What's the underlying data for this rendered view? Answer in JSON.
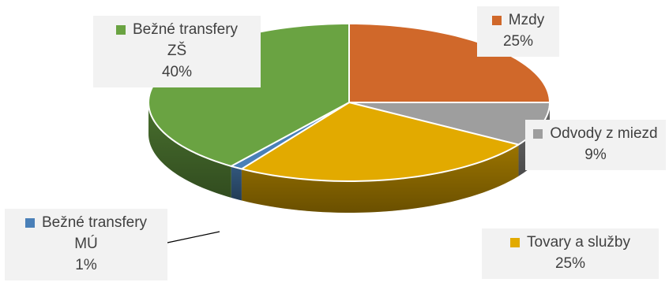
{
  "chart_data": {
    "type": "pie",
    "style": "3d",
    "start_angle_deg": 90,
    "direction": "clockwise",
    "slices": [
      {
        "key": "mzdy",
        "name_lines": [
          "Mzdy"
        ],
        "percent_label": "25%",
        "value": 25,
        "color": "#d0682a"
      },
      {
        "key": "odv",
        "name_lines": [
          "Odvody z miezd"
        ],
        "percent_label": "9%",
        "value": 9,
        "color": "#9e9e9e"
      },
      {
        "key": "tov",
        "name_lines": [
          "Tovary a služby"
        ],
        "percent_label": "25%",
        "value": 25,
        "color": "#e2aa00"
      },
      {
        "key": "mu",
        "name_lines": [
          "Bežné transfery",
          "MÚ"
        ],
        "percent_label": "1%",
        "value": 1,
        "color": "#4a80b8"
      },
      {
        "key": "zs",
        "name_lines": [
          "Bežné transfery",
          "ZŠ"
        ],
        "percent_label": "40%",
        "value": 40,
        "color": "#6aa342"
      }
    ],
    "legend": "none",
    "data_labels": "category name and percentage with color swatch"
  }
}
